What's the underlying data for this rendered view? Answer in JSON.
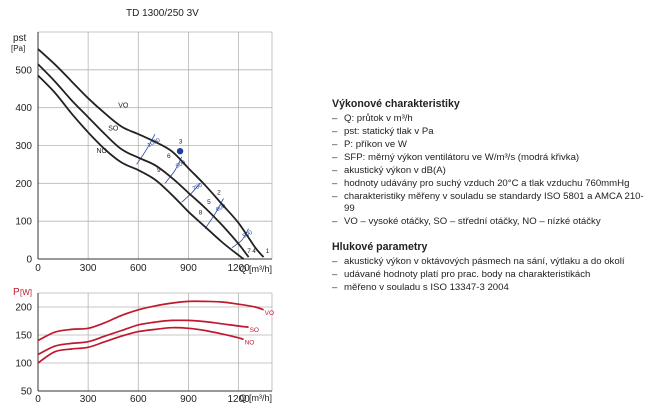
{
  "chart_data": [
    {
      "type": "line",
      "title": "TD 1300/250 3V",
      "ylabel_main": "pst",
      "ylabel_unit": "[Pa]",
      "xlabel": "Q [m³/h]",
      "xlim": [
        0,
        1400
      ],
      "ylim": [
        0,
        600
      ],
      "xticks": [
        "0",
        "300",
        "600",
        "900",
        "1200"
      ],
      "yticks": [
        "0",
        "100",
        "200",
        "300",
        "400",
        "500"
      ],
      "grid": true,
      "series": [
        {
          "name": "VO",
          "x": [
            0,
            100,
            200,
            300,
            400,
            500,
            600,
            700,
            800,
            900,
            1000,
            1100,
            1200,
            1300,
            1350
          ],
          "y": [
            555,
            515,
            470,
            425,
            385,
            350,
            330,
            310,
            285,
            240,
            195,
            145,
            95,
            30,
            5
          ]
        },
        {
          "name": "SO",
          "x": [
            0,
            100,
            200,
            300,
            400,
            500,
            600,
            700,
            800,
            900,
            1000,
            1100,
            1200,
            1260
          ],
          "y": [
            515,
            470,
            420,
            375,
            330,
            290,
            268,
            248,
            215,
            175,
            135,
            90,
            40,
            5
          ]
        },
        {
          "name": "NO",
          "x": [
            0,
            100,
            200,
            300,
            400,
            500,
            600,
            700,
            800,
            900,
            1000,
            1100,
            1200,
            1230
          ],
          "y": [
            485,
            440,
            385,
            335,
            290,
            255,
            235,
            210,
            170,
            125,
            85,
            45,
            10,
            0
          ]
        }
      ],
      "point_labels": [
        {
          "text": "1",
          "x": 1350,
          "y": 10
        },
        {
          "text": "2",
          "x": 1060,
          "y": 165
        },
        {
          "text": "3",
          "x": 830,
          "y": 300
        },
        {
          "text": "4",
          "x": 1270,
          "y": 10
        },
        {
          "text": "5",
          "x": 1000,
          "y": 140
        },
        {
          "text": "6",
          "x": 760,
          "y": 262
        },
        {
          "text": "7",
          "x": 1240,
          "y": 10
        },
        {
          "text": "8",
          "x": 950,
          "y": 112
        },
        {
          "text": "9",
          "x": 700,
          "y": 225
        }
      ],
      "marker": {
        "x": 850,
        "y": 285
      },
      "sfp_series": [
        {
          "label": "1000",
          "points": [
            [
              590,
              250
            ],
            [
              650,
              290
            ],
            [
              700,
              330
            ]
          ]
        },
        {
          "label": "800",
          "points": [
            [
              760,
              200
            ],
            [
              820,
              235
            ],
            [
              860,
              270
            ]
          ]
        },
        {
          "label": "700",
          "points": [
            [
              860,
              150
            ],
            [
              920,
              175
            ],
            [
              970,
              200
            ]
          ]
        },
        {
          "label": "600",
          "points": [
            [
              1000,
              80
            ],
            [
              1060,
              120
            ],
            [
              1110,
              160
            ]
          ]
        },
        {
          "label": "500",
          "points": [
            [
              1160,
              30
            ],
            [
              1220,
              50
            ],
            [
              1260,
              80
            ]
          ]
        }
      ],
      "colors": {
        "curve": "#222222",
        "sfp": "#2a4aa8",
        "marker": "#1f3f9f"
      }
    },
    {
      "type": "line",
      "ylabel_main": "P",
      "ylabel_unit": "[W]",
      "xlabel": "Q [m³/h]",
      "xlim": [
        0,
        1400
      ],
      "ylim": [
        50,
        225
      ],
      "xticks": [
        "0",
        "300",
        "600",
        "900",
        "1200"
      ],
      "yticks": [
        "50",
        "100",
        "150",
        "200"
      ],
      "grid": true,
      "series": [
        {
          "name": "VO",
          "x": [
            0,
            100,
            200,
            300,
            400,
            500,
            600,
            700,
            800,
            900,
            1000,
            1100,
            1200,
            1300,
            1350
          ],
          "y": [
            140,
            155,
            160,
            162,
            172,
            185,
            195,
            202,
            207,
            210,
            210,
            209,
            205,
            200,
            195
          ]
        },
        {
          "name": "SO",
          "x": [
            0,
            100,
            200,
            300,
            400,
            500,
            600,
            700,
            800,
            900,
            1000,
            1100,
            1200,
            1260
          ],
          "y": [
            115,
            130,
            135,
            138,
            148,
            158,
            168,
            173,
            176,
            176,
            174,
            170,
            166,
            164
          ]
        },
        {
          "name": "NO",
          "x": [
            0,
            100,
            200,
            300,
            400,
            500,
            600,
            700,
            800,
            900,
            1000,
            1100,
            1200,
            1230
          ],
          "y": [
            100,
            120,
            125,
            128,
            138,
            148,
            156,
            160,
            163,
            162,
            158,
            152,
            145,
            142
          ]
        }
      ],
      "colors": {
        "curve": "#c0192e",
        "label": "#c0192e"
      }
    }
  ],
  "right_panel": {
    "section1_title": "Výkonové charakteristiky",
    "section1_items": [
      "Q: průtok v m³/h",
      "pst: statický tlak v Pa",
      "P: příkon ve W",
      "SFP: měrný výkon ventilátoru ve W/m³/s (modrá křivka)",
      "akustický výkon v dB(A)",
      "hodnoty udávány pro suchý vzduch 20°C a tlak vzduchu 760mmHg",
      "charakteristiky měřeny v souladu se standardy ISO 5801 a AMCA 210-99",
      "VO – vysoké otáčky, SO – střední otáčky, NO – nízké otáčky"
    ],
    "section2_title": "Hlukové parametry",
    "section2_items": [
      "akustický výkon v oktávových pásmech na sání, výtlaku a do okolí",
      "udávané hodnoty platí pro prac. body na charakteristikách",
      "měřeno v souladu s ISO 13347-3 2004"
    ],
    "bullet_dash": "–"
  }
}
